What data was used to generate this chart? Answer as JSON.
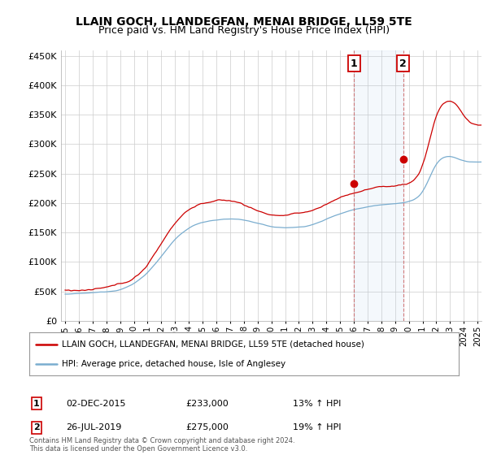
{
  "title": "LLAIN GOCH, LLANDEGFAN, MENAI BRIDGE, LL59 5TE",
  "subtitle": "Price paid vs. HM Land Registry's House Price Index (HPI)",
  "ylim": [
    0,
    460000
  ],
  "yticks": [
    0,
    50000,
    100000,
    150000,
    200000,
    250000,
    300000,
    350000,
    400000,
    450000
  ],
  "xlim_start": 1994.7,
  "xlim_end": 2025.3,
  "red_color": "#cc0000",
  "blue_color": "#7aadcf",
  "vline1_x": 2016.0,
  "vline2_x": 2019.6,
  "marker1_y": 233000,
  "marker2_y": 275000,
  "legend_red": "LLAIN GOCH, LLANDEGFAN, MENAI BRIDGE, LL59 5TE (detached house)",
  "legend_blue": "HPI: Average price, detached house, Isle of Anglesey",
  "annotation1_date": "02-DEC-2015",
  "annotation1_price": "£233,000",
  "annotation1_hpi": "13% ↑ HPI",
  "annotation2_date": "26-JUL-2019",
  "annotation2_price": "£275,000",
  "annotation2_hpi": "19% ↑ HPI",
  "footer": "Contains HM Land Registry data © Crown copyright and database right 2024.\nThis data is licensed under the Open Government Licence v3.0.",
  "background_color": "#ffffff",
  "grid_color": "#cccccc",
  "title_fontsize": 10,
  "subtitle_fontsize": 9
}
